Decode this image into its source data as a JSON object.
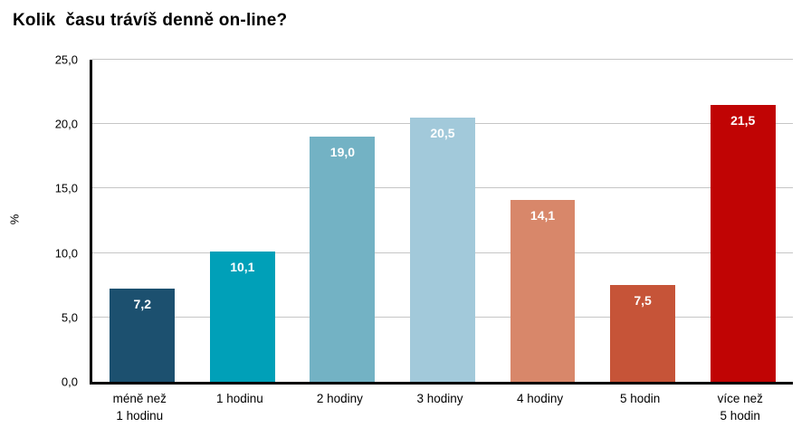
{
  "title": "Kolik  času trávíš denně on-line?",
  "chart_data": {
    "type": "bar",
    "title": "Kolik  času trávíš denně on-line?",
    "categories": [
      "méně než\n1 hodinu",
      "1 hodinu",
      "2 hodiny",
      "3 hodiny",
      "4 hodiny",
      "5 hodin",
      "více než\n5 hodin"
    ],
    "values": [
      7.2,
      10.1,
      19.0,
      20.5,
      14.1,
      7.5,
      21.5
    ],
    "value_labels": [
      "7,2",
      "10,1",
      "19,0",
      "20,5",
      "14,1",
      "7,5",
      "21,5"
    ],
    "bar_colors": [
      "#1c506f",
      "#00a0b8",
      "#73b2c4",
      "#a2c9da",
      "#d8876a",
      "#c65438",
      "#c00404"
    ],
    "xlabel": "",
    "ylabel": "%",
    "ylim": [
      0,
      25
    ],
    "ytick_values": [
      0,
      5,
      10,
      15,
      20,
      25
    ],
    "ytick_labels": [
      "0,0",
      "5,0",
      "10,0",
      "15,0",
      "20,0",
      "25,0"
    ],
    "grid": true,
    "legend_position": "none",
    "gridline_color": "#c6c6c6",
    "axis_color": "#000000",
    "bar_width_fraction": 0.65
  }
}
